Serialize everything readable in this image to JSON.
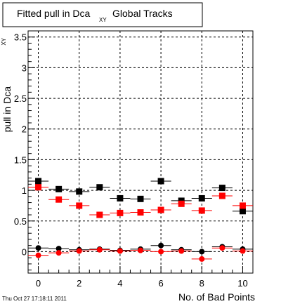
{
  "chart_data": {
    "type": "scatter",
    "title": "Fitted pull in Dca",
    "title_subscript": "XY",
    "title_suffix": "Global Tracks",
    "xlabel": "No. of Bad Points",
    "ylabel": "pull in Dca",
    "ylabel_superscript": "XY",
    "xlim": [
      -0.5,
      10.5
    ],
    "ylim": [
      -0.35,
      3.6
    ],
    "xticks": [
      0,
      2,
      4,
      6,
      8,
      10
    ],
    "yticks": [
      0,
      0.5,
      1,
      1.5,
      2,
      2.5,
      3,
      3.5
    ],
    "ytick_labels": [
      "0",
      "0.5",
      "1",
      "1.5",
      "2",
      "2.5",
      "3",
      "3.5"
    ],
    "grid": true,
    "series": [
      {
        "color": "#000000",
        "marker": "square",
        "x": [
          0,
          1,
          2,
          3,
          4,
          5,
          6,
          7,
          8,
          9,
          10
        ],
        "y": [
          1.15,
          1.02,
          0.98,
          1.05,
          0.87,
          0.86,
          1.15,
          0.83,
          0.87,
          1.04,
          0.66
        ]
      },
      {
        "color": "#ff0000",
        "marker": "square",
        "x": [
          0,
          1,
          2,
          3,
          4,
          5,
          6,
          7,
          8,
          9,
          10
        ],
        "y": [
          1.05,
          0.85,
          0.75,
          0.6,
          0.63,
          0.64,
          0.68,
          0.78,
          0.67,
          0.91,
          0.75
        ]
      },
      {
        "color": "#000000",
        "marker": "circle",
        "x": [
          0,
          1,
          2,
          3,
          4,
          5,
          6,
          7,
          8,
          9,
          10
        ],
        "y": [
          0.06,
          0.05,
          0.03,
          0.04,
          0.02,
          0.04,
          0.1,
          0.03,
          0.0,
          0.08,
          0.04
        ]
      },
      {
        "color": "#ff0000",
        "marker": "circle",
        "x": [
          0,
          1,
          2,
          3,
          4,
          5,
          6,
          7,
          8,
          9,
          10
        ],
        "y": [
          -0.06,
          -0.02,
          0.01,
          0.03,
          0.01,
          0.02,
          0.0,
          0.01,
          -0.12,
          0.06,
          0.01
        ]
      }
    ]
  },
  "timestamp": "Thu Oct 27 17:18:11 2011"
}
